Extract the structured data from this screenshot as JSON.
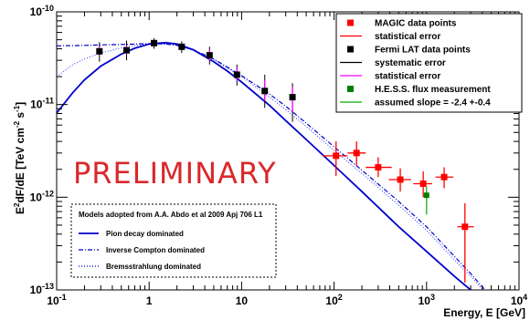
{
  "chart_data": {
    "type": "scatter",
    "xscale": "log",
    "yscale": "log",
    "xlim": [
      0.1,
      10000
    ],
    "ylim": [
      1e-13,
      1e-10
    ],
    "xlabel": "Energy, E [GeV]",
    "ylabel_main": "E",
    "ylabel_sup2": "2",
    "ylabel_mid": "dF/dE [TeV cm",
    "ylabel_supm2": "-2",
    "ylabel_s": " s",
    "ylabel_supm1": "-1",
    "ylabel_end": "]",
    "x_ticks": [
      {
        "value": 0.1,
        "base": "10",
        "exp": "-1"
      },
      {
        "value": 1,
        "base": "1",
        "exp": ""
      },
      {
        "value": 10,
        "base": "10",
        "exp": ""
      },
      {
        "value": 100,
        "base": "10",
        "exp": "2"
      },
      {
        "value": 1000,
        "base": "10",
        "exp": "3"
      },
      {
        "value": 10000,
        "base": "10",
        "exp": "4"
      }
    ],
    "y_ticks": [
      {
        "value": 1e-13,
        "base": "10",
        "exp": "-13"
      },
      {
        "value": 1e-12,
        "base": "10",
        "exp": "-12"
      },
      {
        "value": 1e-11,
        "base": "10",
        "exp": "-11"
      },
      {
        "value": 1e-10,
        "base": "10",
        "exp": "-10"
      }
    ],
    "annotation": "PRELIMINARY",
    "colors": {
      "magic": "#ff0000",
      "fermi": "#000000",
      "fermi_stat": "#ff00ff",
      "hess": "#008000",
      "hess_slope": "#00aa00",
      "model": "#0000cc"
    },
    "series": [
      {
        "name": "MAGIC data points",
        "x": [
          105,
          175,
          300,
          520,
          920,
          1550,
          2600
        ],
        "y": [
          2.8e-12,
          3e-12,
          2.1e-12,
          1.55e-12,
          1.4e-12,
          1.65e-12,
          4.8e-13
        ],
        "ylo": [
          1.7e-12,
          2.2e-12,
          1.65e-12,
          1.15e-12,
          1e-12,
          1.25e-12,
          1.2e-13
        ],
        "yhi": [
          4e-12,
          4e-12,
          2.7e-12,
          2.05e-12,
          1.9e-12,
          2.1e-12,
          8.6e-13
        ],
        "xlo": [
          75,
          140,
          220,
          390,
          720,
          1250,
          2150
        ],
        "xhi": [
          140,
          220,
          420,
          680,
          1150,
          1950,
          3250
        ]
      },
      {
        "name": "Fermi LAT data points",
        "x": [
          0.29,
          0.57,
          1.13,
          2.25,
          4.5,
          8.9,
          17.8,
          35.5
        ],
        "y": [
          3.75e-11,
          3.85e-11,
          4.6e-11,
          4.2e-11,
          3.4e-11,
          2.1e-11,
          1.4e-11,
          1.2e-11
        ],
        "sys_lo": [
          2.9e-11,
          3e-11,
          4e-11,
          3.6e-11,
          2.7e-11,
          1.6e-11,
          9.2e-12,
          6.5e-12
        ],
        "sys_hi": [
          4.7e-11,
          4.9e-11,
          5.2e-11,
          4.8e-11,
          4.2e-11,
          2.7e-11,
          2.1e-11,
          1.7e-11
        ],
        "stat_lo": [
          3.4e-11,
          3.5e-11,
          4.3e-11,
          3.9e-11,
          3e-11,
          1.8e-11,
          1.1e-11,
          8.3e-12
        ],
        "stat_hi": [
          4.2e-11,
          4.3e-11,
          5e-11,
          4.6e-11,
          3.9e-11,
          2.5e-11,
          1.85e-11,
          1.55e-11
        ]
      },
      {
        "name": "H.E.S.S. flux measurement",
        "x": [
          1000
        ],
        "y": [
          1.05e-12
        ],
        "ylo": [
          6.5e-13
        ],
        "yhi": [
          1.3e-12
        ],
        "slope": "-2.4 +-0.4"
      }
    ],
    "models": {
      "pion": {
        "x": [
          0.1,
          0.15,
          0.2,
          0.3,
          0.5,
          0.7,
          1,
          1.5,
          2,
          3,
          5,
          7,
          10,
          20,
          30,
          50,
          100,
          200,
          500,
          1000,
          2000,
          3000,
          5000
        ],
        "y": [
          8.1e-12,
          1.35e-11,
          1.85e-11,
          2.6e-11,
          3.5e-11,
          4.05e-11,
          4.5e-11,
          4.65e-11,
          4.5e-11,
          3.9e-11,
          2.9e-11,
          2.3e-11,
          1.75e-11,
          9.8e-12,
          6.7e-12,
          4.2e-12,
          2.2e-12,
          1.15e-12,
          4.8e-13,
          2.6e-13,
          1.4e-13,
          1e-13,
          6.2e-14
        ]
      },
      "ic": {
        "x": [
          0.1,
          0.2,
          0.3,
          0.5,
          0.7,
          1,
          1.5,
          2,
          3,
          5,
          10,
          20,
          30,
          50,
          100,
          200,
          500,
          1000,
          2000,
          3000,
          5000
        ],
        "y": [
          4.3e-11,
          4.35e-11,
          4.4e-11,
          4.45e-11,
          4.5e-11,
          4.55e-11,
          4.5e-11,
          4.35e-11,
          3.9e-11,
          3.1e-11,
          2.05e-11,
          1.3e-11,
          9.6e-12,
          6.3e-12,
          3.5e-12,
          1.95e-12,
          9e-13,
          4.8e-13,
          2.3e-13,
          1.5e-13,
          8.4e-14
        ]
      },
      "brems": {
        "x": [
          0.1,
          0.15,
          0.2,
          0.3,
          0.5,
          0.7,
          1,
          1.5,
          2,
          3,
          5,
          10,
          20,
          30,
          50,
          100,
          200,
          500,
          1000,
          2000,
          3000,
          5000
        ],
        "y": [
          2e-11,
          2.7e-11,
          3.1e-11,
          3.6e-11,
          4.1e-11,
          4.35e-11,
          4.5e-11,
          4.5e-11,
          4.35e-11,
          3.85e-11,
          3.05e-11,
          2e-11,
          1.2e-11,
          8.8e-12,
          5.8e-12,
          3.2e-12,
          1.8e-12,
          8.2e-13,
          4.4e-13,
          2.1e-13,
          1.4e-13,
          8e-14
        ]
      }
    },
    "legend": {
      "position": "top-right",
      "entries": [
        {
          "label": "MAGIC data points",
          "kind": "marker",
          "color": "#ff0000"
        },
        {
          "label": "statistical error",
          "kind": "line",
          "color": "#ff0000"
        },
        {
          "label": "Fermi LAT data points",
          "kind": "marker",
          "color": "#000000"
        },
        {
          "label": "systematic error",
          "kind": "line",
          "color": "#000000"
        },
        {
          "label": "statistical error",
          "kind": "line",
          "color": "#ff00ff"
        },
        {
          "label": "H.E.S.S. flux measurement",
          "kind": "marker",
          "color": "#008000"
        },
        {
          "label": "assumed slope = -2.4 +-0.4",
          "kind": "line",
          "color": "#00aa00"
        }
      ]
    },
    "models_legend": {
      "title": "Models adopted from A.A. Abdo et al 2009 Apj 706 L1",
      "entries": [
        {
          "label": "Pion decay dominated",
          "style": "solid"
        },
        {
          "label": "Inverse Compton dominated",
          "style": "dashdot"
        },
        {
          "label": "Bremsstrahlung dominated",
          "style": "dotted"
        }
      ]
    }
  }
}
